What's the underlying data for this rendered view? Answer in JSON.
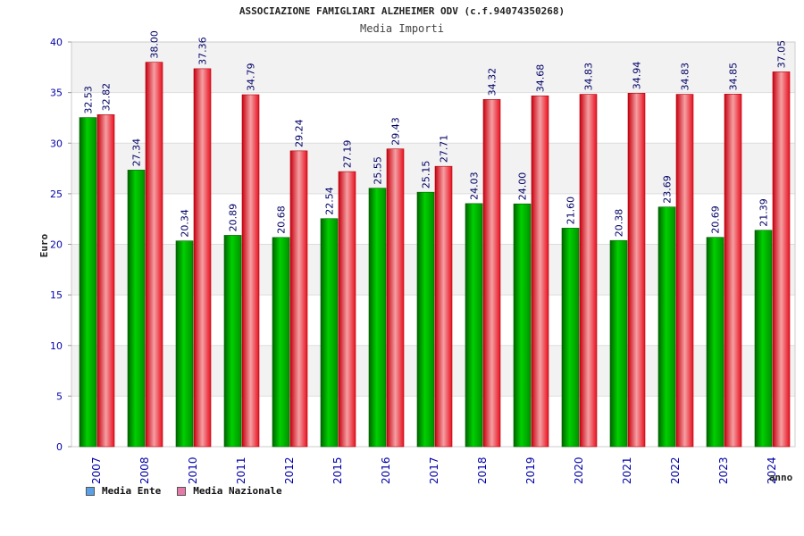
{
  "chart_data": {
    "type": "bar",
    "title": "ASSOCIAZIONE FAMIGLIARI ALZHEIMER ODV (c.f.94074350268)",
    "subtitle": "Media Importi",
    "xlabel": "anno",
    "ylabel": "Euro",
    "ylim": [
      0,
      40
    ],
    "yticks": [
      0,
      5,
      10,
      15,
      20,
      25,
      30,
      35,
      40
    ],
    "grid": true,
    "legend_position": "bottom-left",
    "categories": [
      "2007",
      "2008",
      "2010",
      "2011",
      "2012",
      "2015",
      "2016",
      "2017",
      "2018",
      "2019",
      "2020",
      "2021",
      "2022",
      "2023",
      "2024"
    ],
    "series": [
      {
        "name": "Media Ente",
        "color": "#00b000",
        "values": [
          32.53,
          27.34,
          20.34,
          20.89,
          20.68,
          22.54,
          25.55,
          25.15,
          24.03,
          24.0,
          21.6,
          20.38,
          23.69,
          20.69,
          21.39
        ]
      },
      {
        "name": "Media Nazionale",
        "color": "#e8101e",
        "values": [
          32.82,
          38.0,
          37.36,
          34.79,
          29.24,
          27.19,
          29.43,
          27.71,
          34.32,
          34.68,
          34.83,
          34.94,
          34.83,
          34.85,
          37.05
        ]
      }
    ],
    "legend_swatch_colors": [
      "#5aa0e6",
      "#e57aa8"
    ]
  }
}
